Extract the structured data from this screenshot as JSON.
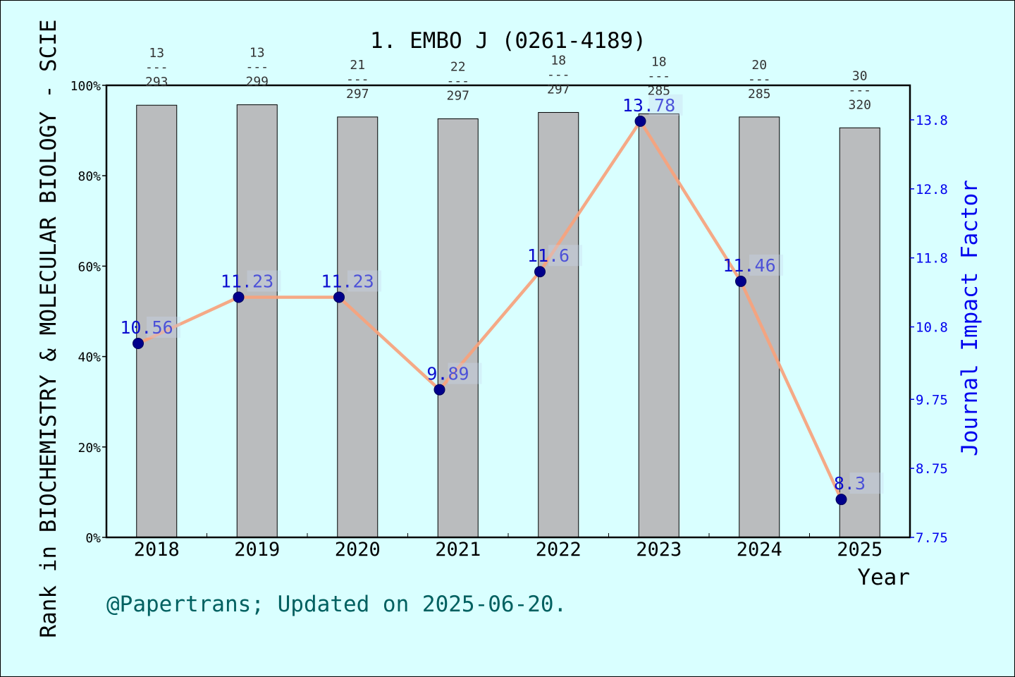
{
  "footer": "@Papertrans; Updated on 2025-06-20.",
  "colors": {
    "background": "#d9ffff",
    "bar": "#babcbe",
    "line": "#f7a27c",
    "marker": "#00008b",
    "if_label": "#0000cc",
    "footer": "#006060"
  },
  "chart_data": {
    "type": "bar",
    "title": "1. EMBO J (0261-4189)",
    "xlabel": "Year",
    "ylabel": "Rank in BIOCHEMISTRY & MOLECULAR BIOLOGY - SCIE",
    "y2label": "Journal Impact Factor",
    "categories": [
      "2018",
      "2019",
      "2020",
      "2021",
      "2022",
      "2023",
      "2024",
      "2025"
    ],
    "y_ticks": [
      "0%",
      "20%",
      "40%",
      "60%",
      "80%",
      "100%"
    ],
    "ylim": [
      0,
      100
    ],
    "y2_ticks": [
      "7.75",
      "8.75",
      "9.75",
      "10.8",
      "11.8",
      "12.8",
      "13.8"
    ],
    "y2lim": [
      7.75,
      14.3
    ],
    "grid": false,
    "rank": [
      13,
      13,
      21,
      22,
      18,
      18,
      20,
      30
    ],
    "total": [
      293,
      299,
      297,
      297,
      297,
      285,
      285,
      320
    ],
    "rank_separator": "---",
    "bar_values_percent": [
      95.6,
      95.7,
      93.0,
      92.6,
      94.0,
      93.7,
      93.0,
      90.6
    ],
    "series": [
      {
        "values": [
          95.6,
          95.7,
          93.0,
          92.6,
          94.0,
          93.7,
          93.0,
          90.6
        ]
      },
      {
        "name": "Journal Impact Factor",
        "values": [
          10.56,
          11.23,
          11.23,
          9.89,
          11.6,
          13.78,
          11.46,
          8.3
        ]
      }
    ],
    "impact_factor_labels": [
      "10.56",
      "11.23",
      "11.23",
      "9.89",
      "11.6",
      "13.78",
      "11.46",
      "8.3"
    ]
  }
}
